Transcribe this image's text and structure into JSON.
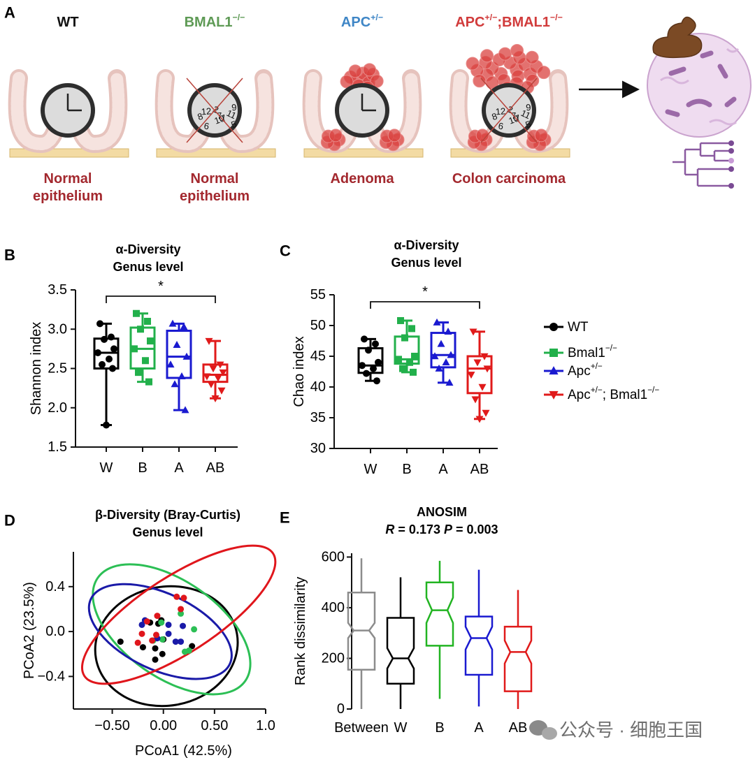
{
  "panel_a": {
    "letter": "A",
    "caption_color": "#a3282e",
    "scrambled_clock": [
      "8",
      "12",
      "6",
      "2",
      "10",
      "7",
      "1",
      "11",
      "5",
      "9"
    ],
    "groups": [
      {
        "label": [
          {
            "text": "WT"
          }
        ],
        "color": "#111111",
        "caption": [
          "Normal",
          "epithelium"
        ]
      },
      {
        "label": [
          {
            "text": "BMAL1"
          },
          {
            "sup": "−/−"
          }
        ],
        "color": "#5e9a55",
        "caption": [
          "Normal",
          "epithelium"
        ]
      },
      {
        "label": [
          {
            "text": "APC"
          },
          {
            "sup": "+/−"
          }
        ],
        "color": "#3f86c6",
        "caption": [
          "Adenoma"
        ]
      },
      {
        "label": [
          {
            "text": "APC"
          },
          {
            "sup": "+/−"
          },
          {
            "text": ";BMAL1"
          },
          {
            "sup": "−/−"
          }
        ],
        "color": "#d13b3b",
        "caption": [
          "Colon carcinoma"
        ]
      }
    ]
  },
  "legend": [
    {
      "parts": [
        {
          "text": "WT"
        }
      ],
      "color": "#000000",
      "marker": "circle"
    },
    {
      "parts": [
        {
          "text": "Bmal1"
        },
        {
          "sup": "−/−"
        }
      ],
      "color": "#22b04b",
      "marker": "square"
    },
    {
      "parts": [
        {
          "text": "Apc"
        },
        {
          "sup": "+/−"
        }
      ],
      "color": "#1a1ad0",
      "marker": "triangle"
    },
    {
      "parts": [
        {
          "text": "Apc"
        },
        {
          "sup": "+/−"
        },
        {
          "text": "; Bmal1"
        },
        {
          "sup": "−/−"
        }
      ],
      "color": "#e01a1a",
      "marker": "triangle-down"
    }
  ],
  "chart_data": [
    {
      "type": "box",
      "letter": "B",
      "title": [
        "α-Diversity",
        "Genus level"
      ],
      "ylabel": "Shannon index",
      "categories": [
        "W",
        "B",
        "A",
        "AB"
      ],
      "ylim": [
        1.5,
        3.5
      ],
      "yticks": [
        1.5,
        {
          "value": 2,
          "label": "2.0"
        },
        2.5,
        {
          "value": 3,
          "label": "3.0"
        },
        3.5
      ],
      "significance": "*",
      "boxes": [
        {
          "min": 1.78,
          "q1": 2.5,
          "median": 2.7,
          "q3": 2.88,
          "max": 3.07,
          "points": [
            3.07,
            2.9,
            2.87,
            2.75,
            2.7,
            2.62,
            2.55,
            2.5,
            1.78
          ]
        },
        {
          "min": 2.33,
          "q1": 2.5,
          "median": 2.75,
          "q3": 3.02,
          "max": 3.2,
          "points": [
            3.2,
            3.1,
            3.0,
            2.85,
            2.75,
            2.6,
            2.45,
            2.33
          ]
        },
        {
          "min": 1.97,
          "q1": 2.38,
          "median": 2.65,
          "q3": 2.98,
          "max": 3.07,
          "points": [
            3.07,
            3.03,
            2.8,
            2.65,
            2.55,
            2.4,
            2.3,
            1.97
          ]
        },
        {
          "min": 2.12,
          "q1": 2.33,
          "median": 2.42,
          "q3": 2.55,
          "max": 2.85,
          "points": [
            2.85,
            2.55,
            2.5,
            2.45,
            2.4,
            2.38,
            2.3,
            2.22,
            2.12
          ]
        }
      ]
    },
    {
      "type": "box",
      "letter": "C",
      "title": [
        "α-Diversity",
        "Genus level"
      ],
      "ylabel": "Chao index",
      "categories": [
        "W",
        "B",
        "A",
        "AB"
      ],
      "ylim": [
        30,
        55
      ],
      "yticks": [
        30,
        35,
        40,
        45,
        50,
        55
      ],
      "significance": "*",
      "boxes": [
        {
          "min": 41,
          "q1": 42.3,
          "median": 43.5,
          "q3": 46.3,
          "max": 47.8,
          "points": [
            47.8,
            47,
            46,
            44,
            43.5,
            43,
            42.2,
            41
          ]
        },
        {
          "min": 42.4,
          "q1": 43.8,
          "median": 44.5,
          "q3": 48.2,
          "max": 50.8,
          "points": [
            50.8,
            49.5,
            48,
            45,
            44.5,
            44,
            43,
            42.4
          ]
        },
        {
          "min": 40.7,
          "q1": 43.2,
          "median": 45.2,
          "q3": 48.8,
          "max": 50.5,
          "points": [
            50.5,
            49,
            47,
            45.2,
            45,
            44,
            43,
            40.7
          ]
        },
        {
          "min": 34.8,
          "q1": 39,
          "median": 43,
          "q3": 45,
          "max": 49,
          "points": [
            49,
            45,
            44,
            43,
            42,
            40,
            38,
            35.8,
            34.8
          ]
        }
      ]
    },
    {
      "type": "scatter",
      "letter": "D",
      "title": [
        "β-Diversity (Bray-Curtis)",
        "Genus level"
      ],
      "xlabel": "PCoA1 (42.5%)",
      "ylabel": "PCoA2 (23.5%)",
      "xlim": [
        -0.88,
        1.0
      ],
      "ylim": [
        -0.69,
        0.71
      ],
      "xticks": [
        {
          "value": -0.5,
          "label": "−0.50"
        },
        {
          "value": 0,
          "label": "0.00"
        },
        {
          "value": 0.5,
          "label": "0.50"
        },
        {
          "value": 1,
          "label": "1.0"
        }
      ],
      "yticks": [
        {
          "value": -0.4,
          "label": "−0.4"
        },
        {
          "value": 0,
          "label": "0.0"
        },
        {
          "value": 0.4,
          "label": "0.4"
        }
      ],
      "series": [
        {
          "color": "#000000",
          "x": [
            -0.42,
            -0.2,
            -0.08,
            -0.01,
            -0.08,
            -0.05,
            -0.02,
            -0.13,
            0.28,
            0.0
          ],
          "y": [
            -0.09,
            -0.14,
            -0.15,
            -0.2,
            -0.25,
            0.07,
            0.1,
            0.08,
            -0.13,
            -0.07
          ],
          "ellipse": {
            "center": [
              0.03,
              -0.13
            ],
            "radii": [
              0.7,
              0.53
            ],
            "angle": -10
          }
        },
        {
          "color": "#2cbf55",
          "x": [
            0.3,
            0.25,
            0.21,
            -0.01,
            -0.1,
            0.17,
            -0.02
          ],
          "y": [
            0.02,
            -0.17,
            -0.18,
            -0.07,
            -0.08,
            0.16,
            0.08
          ],
          "ellipse": {
            "center": [
              0.08,
              0.02
            ],
            "radii": [
              0.88,
              0.43
            ],
            "angle": 35
          }
        },
        {
          "color": "#1a1aa8",
          "x": [
            -0.18,
            -0.21,
            0.12,
            0.17,
            0.19,
            0.05,
            0.05,
            -0.06
          ],
          "y": [
            0.1,
            0.06,
            -0.09,
            -0.09,
            0.05,
            0.06,
            -0.02,
            -0.06
          ],
          "ellipse": {
            "center": [
              -0.03,
              0.0
            ],
            "radii": [
              0.75,
              0.34
            ],
            "angle": 25
          }
        },
        {
          "color": "#e0161c",
          "x": [
            -0.25,
            0.13,
            0.2,
            0.17,
            -0.06,
            -0.16,
            -0.07,
            -0.21,
            -0.11
          ],
          "y": [
            -0.1,
            0.31,
            0.3,
            0.2,
            0.14,
            0.09,
            -0.03,
            -0.02,
            -0.08
          ],
          "ellipse": {
            "center": [
              0.15,
              0.15
            ],
            "radii": [
              1.1,
              0.34
            ],
            "angle": -33
          }
        }
      ]
    },
    {
      "type": "notched-box",
      "letter": "E",
      "title": "ANOSIM",
      "subtitle": [
        {
          "italic": "R"
        },
        {
          "text": " = 0.173 "
        },
        {
          "italic": "P"
        },
        {
          "text": " = 0.003"
        }
      ],
      "ylabel": "Rank dissimilarity",
      "categories": [
        "Between",
        "W",
        "B",
        "A",
        "AB"
      ],
      "ylim": [
        0,
        615
      ],
      "yticks": [
        0,
        200,
        400,
        600
      ],
      "boxes": [
        {
          "color": "#8c8c8c",
          "min": 0,
          "q1": 155,
          "notch_low": 280,
          "median": 310,
          "notch_high": 340,
          "q3": 460,
          "max": 595
        },
        {
          "color": "#000000",
          "min": 0,
          "q1": 100,
          "notch_low": 160,
          "median": 200,
          "notch_high": 240,
          "q3": 360,
          "max": 520
        },
        {
          "color": "#22b422",
          "min": 40,
          "q1": 250,
          "notch_low": 340,
          "median": 390,
          "notch_high": 440,
          "q3": 500,
          "max": 585
        },
        {
          "color": "#1a1ad0",
          "min": 10,
          "q1": 135,
          "notch_low": 235,
          "median": 280,
          "notch_high": 325,
          "q3": 365,
          "max": 550
        },
        {
          "color": "#e01a1a",
          "min": 0,
          "q1": 70,
          "notch_low": 180,
          "median": 225,
          "notch_high": 270,
          "q3": 325,
          "max": 470
        }
      ]
    }
  ],
  "watermark": "公众号 · 细胞王国"
}
